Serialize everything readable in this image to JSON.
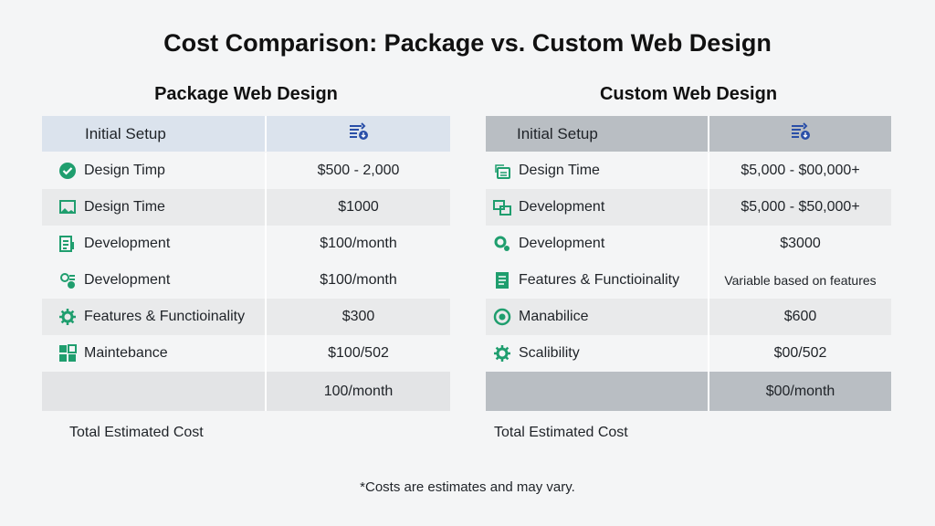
{
  "title": "Cost Comparison: Package vs. Custom Web Design",
  "colors": {
    "accent_green": "#1f9e6e",
    "header_blue": "#dbe3ed",
    "header_gray": "#b9bec3",
    "icon_blue": "#2a4fa8"
  },
  "package": {
    "heading": "Package Web Design",
    "header_label": "Initial Setup",
    "header_icon": "list-coin-icon",
    "rows": [
      {
        "label": "Design Timp",
        "value": "$500 - 2,000",
        "icon": "check-circle-icon"
      },
      {
        "label": "Design Time",
        "value": "$1000",
        "icon": "image-icon"
      },
      {
        "label": "Development",
        "value": "$100/month",
        "icon": "document-list-icon"
      },
      {
        "label": "Development",
        "value": "$100/month",
        "icon": "gear-document-icon"
      },
      {
        "label": "Features & Functioinality",
        "value": "$300",
        "icon": "gear-icon"
      },
      {
        "label": "Maintebance",
        "value": "$100/502",
        "icon": "grid-icon"
      },
      {
        "label": "",
        "value": "100/month",
        "icon": ""
      }
    ],
    "total_label": "Total Estimated Cost"
  },
  "custom": {
    "heading": "Custom Web Design",
    "header_label": "Initial Setup",
    "header_icon": "list-coin-icon",
    "rows": [
      {
        "label": "Design Time",
        "value": "$5,000 - $00,000+",
        "icon": "window-cloud-icon"
      },
      {
        "label": "Development",
        "value": "$5,000 - $50,000+",
        "icon": "windows-icon"
      },
      {
        "label": "Development",
        "value": "$3000",
        "icon": "gears-icon"
      },
      {
        "label": "Features & Functioinality",
        "value": "Variable based on features",
        "icon": "document-icon"
      },
      {
        "label": "Manabilice",
        "value": "$600",
        "icon": "target-icon"
      },
      {
        "label": "Scalibility",
        "value": "$00/502",
        "icon": "gear-icon"
      },
      {
        "label": "",
        "value": "$00/month",
        "icon": ""
      }
    ],
    "total_label": "Total Estimated Cost"
  },
  "footnote": "*Costs are estimates and may vary."
}
